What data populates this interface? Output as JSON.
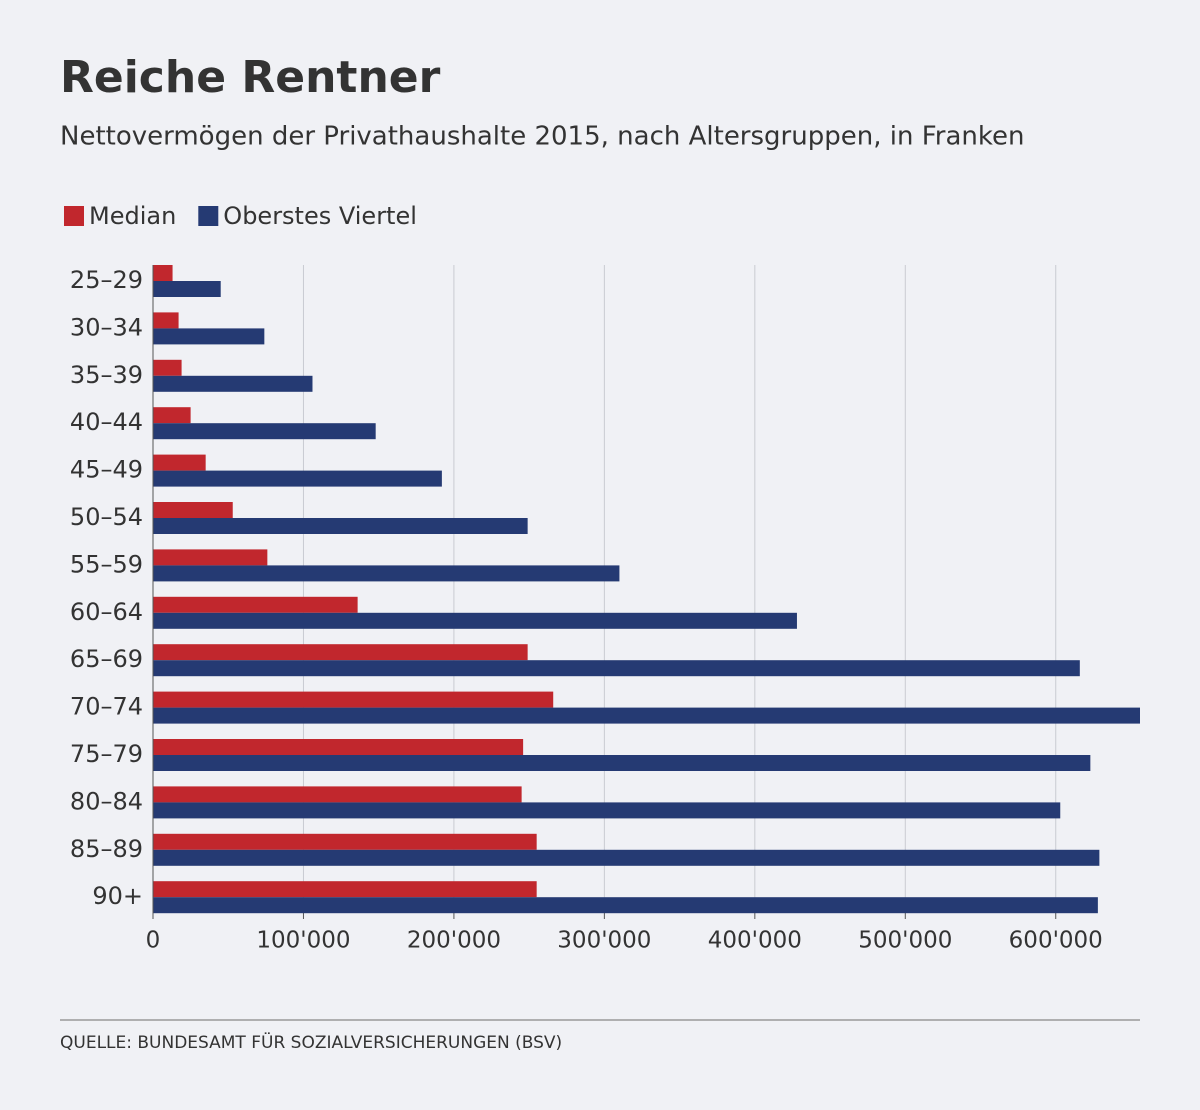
{
  "chart_data": {
    "type": "bar",
    "horizontal": true,
    "title": "Reiche Rentner",
    "subtitle": "Nettovermögen der Privathaushalte 2015, nach Altersgruppen, in Franken",
    "source": "QUELLE: BUNDESAMT FÜR SOZIALVERSICHERUNGEN (BSV)",
    "categories": [
      "25–29",
      "30–34",
      "35–39",
      "40–44",
      "45–49",
      "50–54",
      "55–59",
      "60–64",
      "65–69",
      "70–74",
      "75–79",
      "80–84",
      "85–89",
      "90+"
    ],
    "series": [
      {
        "name": "Median",
        "color": "#c1272d",
        "values": [
          13000,
          17000,
          19000,
          25000,
          35000,
          53000,
          76000,
          136000,
          249000,
          266000,
          246000,
          245000,
          255000,
          255000
        ]
      },
      {
        "name": "Oberstes Viertel",
        "color": "#253a73",
        "values": [
          45000,
          74000,
          106000,
          148000,
          192000,
          249000,
          310000,
          428000,
          616000,
          656000,
          623000,
          603000,
          629000,
          628000
        ]
      }
    ],
    "xlim": [
      0,
      656000
    ],
    "xticks": [
      0,
      {
        "value": 100000,
        "label": "100'000"
      },
      {
        "value": 200000,
        "label": "200'000"
      },
      {
        "value": 300000,
        "label": "300'000"
      },
      {
        "value": 400000,
        "label": "400'000"
      },
      {
        "value": 500000,
        "label": "500'000"
      },
      {
        "value": 600000,
        "label": "600'000"
      }
    ],
    "grid": true,
    "legend": "top-left"
  }
}
